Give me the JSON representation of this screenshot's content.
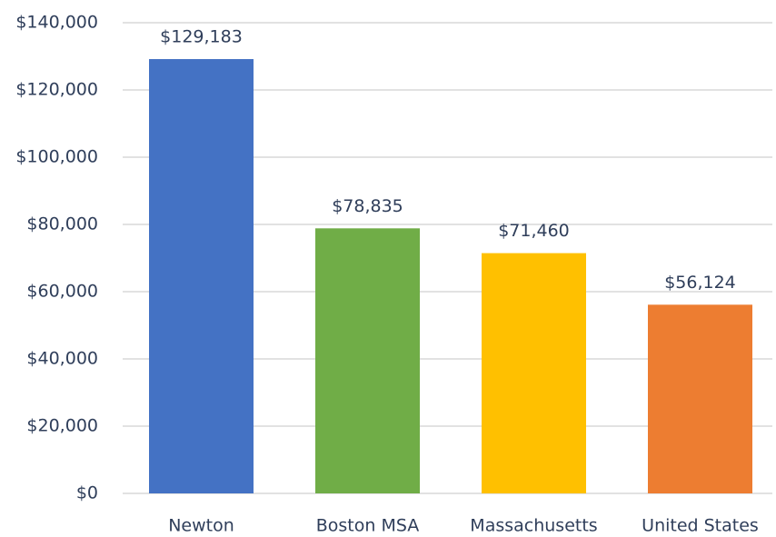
{
  "chart_data": {
    "type": "bar",
    "categories": [
      "Newton",
      "Boston MSA",
      "Massachusetts",
      "United States"
    ],
    "values": [
      129183,
      78835,
      71460,
      56124
    ],
    "value_labels": [
      "$129,183",
      "$78,835",
      "$71,460",
      "$56,124"
    ],
    "colors": [
      "#4472c4",
      "#70ad47",
      "#ffc000",
      "#ed7d31"
    ],
    "ylim": [
      0,
      140000
    ],
    "yticks": [
      {
        "value": 0,
        "label": "$0"
      },
      {
        "value": 20000,
        "label": "$20,000"
      },
      {
        "value": 40000,
        "label": "$40,000"
      },
      {
        "value": 60000,
        "label": "$60,000"
      },
      {
        "value": 80000,
        "label": "$80,000"
      },
      {
        "value": 100000,
        "label": "$100,000"
      },
      {
        "value": 120000,
        "label": "$120,000"
      },
      {
        "value": 140000,
        "label": "$140,000"
      }
    ],
    "grid": true
  }
}
